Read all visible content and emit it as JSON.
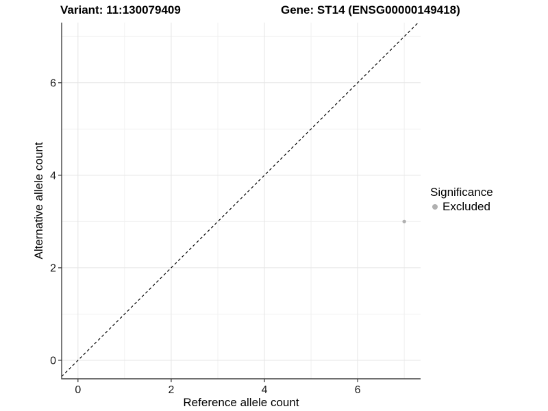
{
  "header": {
    "variant_title": "Variant: 11:130079409",
    "gene_title": "Gene: ST14 (ENSG00000149418)"
  },
  "chart_data": {
    "type": "scatter",
    "xlabel": "Reference allele count",
    "ylabel": "Alternative allele count",
    "xlim": [
      -0.35,
      7.35
    ],
    "ylim": [
      -0.4,
      7.3
    ],
    "x_ticks": [
      0,
      2,
      4,
      6
    ],
    "y_ticks": [
      0,
      2,
      4,
      6
    ],
    "x_minor_gridlines": [
      1,
      3,
      5,
      7
    ],
    "y_minor_gridlines": [
      1,
      3,
      5,
      7
    ],
    "grid": "major-and-minor",
    "identity_line": {
      "style": "dashed",
      "color": "#000000",
      "from": -0.35,
      "to": 7.3
    },
    "series": [
      {
        "name": "Excluded",
        "color": "#b0b0b0",
        "points": [
          {
            "x": 7,
            "y": 3
          }
        ]
      }
    ],
    "legend": {
      "title": "Significance",
      "position": "right",
      "entries": [
        {
          "label": "Excluded",
          "color": "#b0b0b0"
        }
      ]
    },
    "colors": {
      "grid_major": "#e5e5e5",
      "grid_minor": "#f0f0f0",
      "axis_line": "#404040",
      "tick_mark": "#333333",
      "tick_label": "#1a1a1a"
    }
  }
}
